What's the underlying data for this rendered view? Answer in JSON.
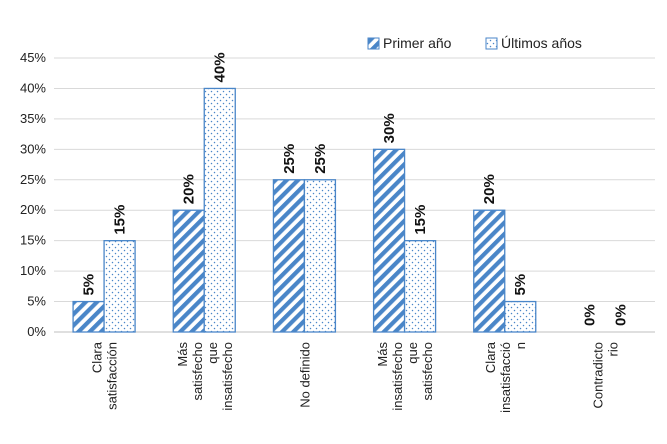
{
  "chart_data": {
    "type": "bar",
    "title": "",
    "xlabel": "",
    "ylabel": "",
    "ylim": [
      0,
      45
    ],
    "grid": true,
    "legend_position": "top-right",
    "y_ticks": [
      "0%",
      "5%",
      "10%",
      "15%",
      "20%",
      "25%",
      "30%",
      "35%",
      "40%",
      "45%"
    ],
    "categories": [
      [
        "Clara",
        "satisfacción"
      ],
      [
        "Más",
        "satisfecho",
        "que",
        "insatisfecho"
      ],
      [
        "No definido"
      ],
      [
        "Más",
        "insatisfecho",
        "que",
        "satisfecho"
      ],
      [
        "Clara",
        "insatisfacció",
        "n"
      ],
      [
        "Contradicto",
        "rio"
      ]
    ],
    "series": [
      {
        "name": "Primer año",
        "values": [
          5,
          20,
          25,
          30,
          20,
          0
        ],
        "labels": [
          "5%",
          "20%",
          "25%",
          "30%",
          "20%",
          "0%"
        ],
        "pattern": "diagonal",
        "color": "#4a86c8"
      },
      {
        "name": "Últimos años",
        "values": [
          15,
          40,
          25,
          15,
          5,
          0
        ],
        "labels": [
          "15%",
          "40%",
          "25%",
          "15%",
          "5%",
          "0%"
        ],
        "pattern": "dots",
        "color": "#4a86c8"
      }
    ]
  }
}
